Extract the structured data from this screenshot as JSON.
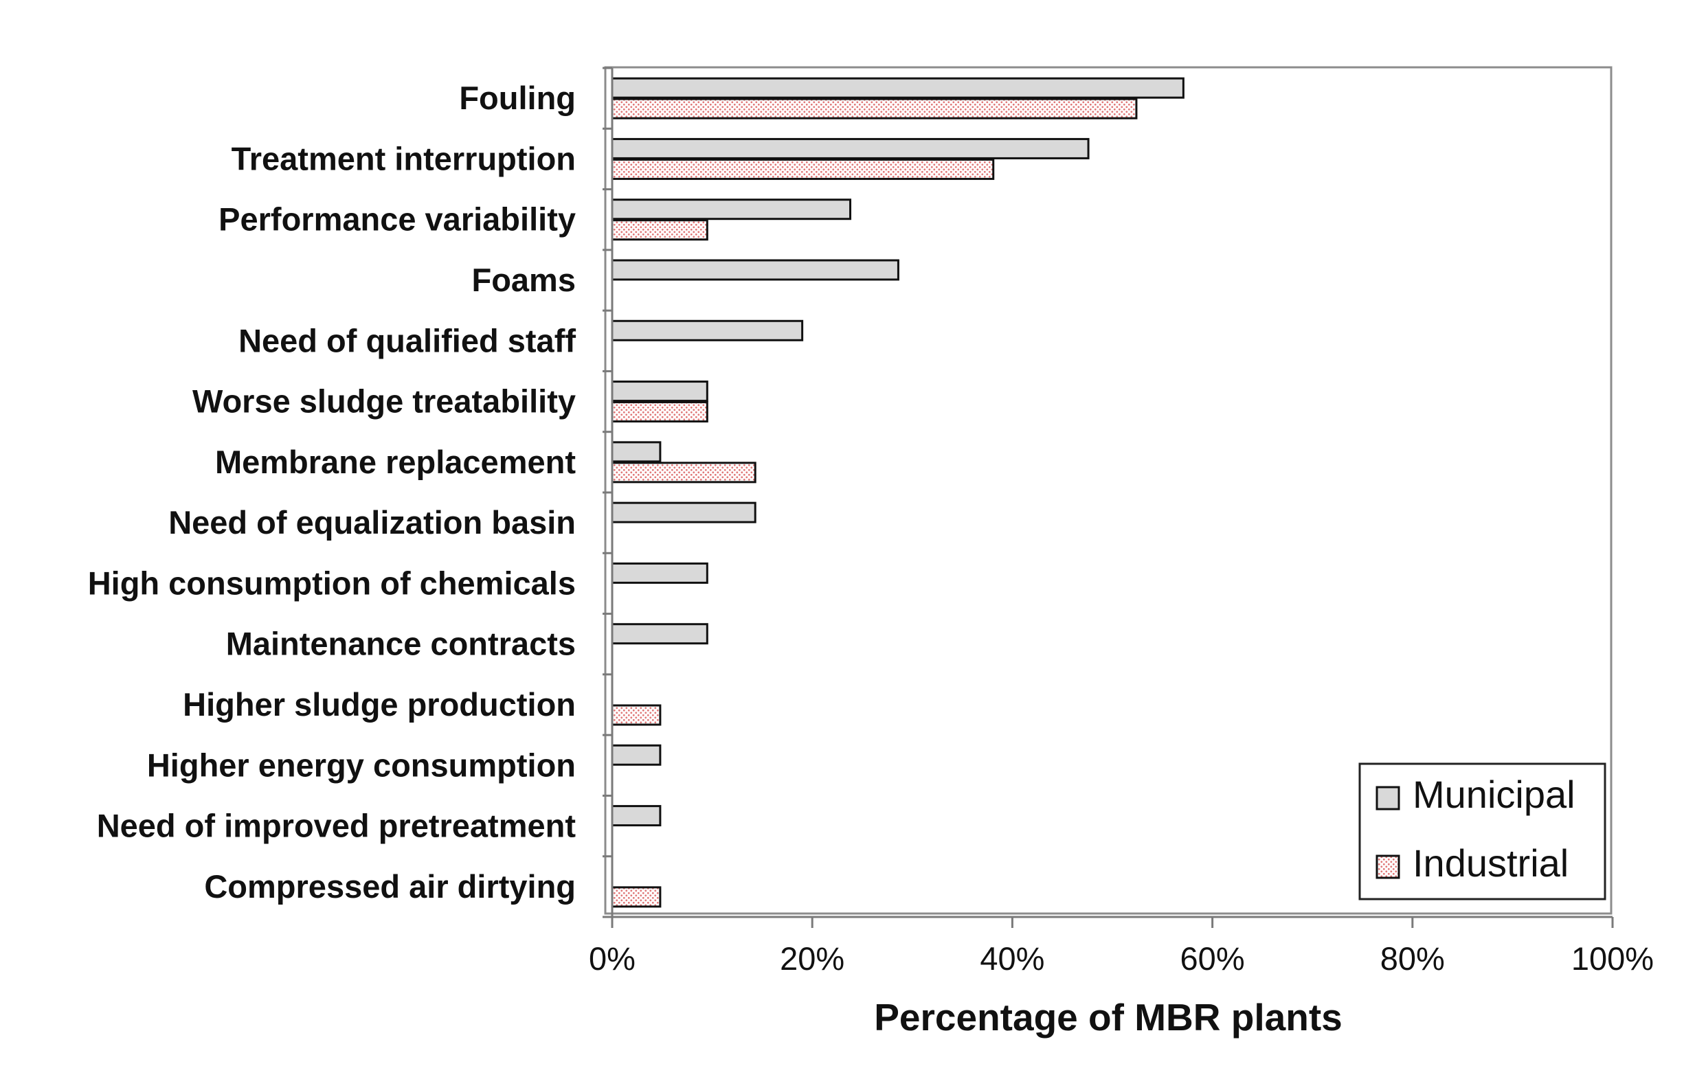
{
  "chart_data": {
    "type": "bar",
    "orientation": "horizontal",
    "categories": [
      "Fouling",
      "Treatment interruption",
      "Performance variability",
      "Foams",
      "Need of qualified staff",
      "Worse sludge treatability",
      "Membrane replacement",
      "Need of equalization basin",
      "High consumption of chemicals",
      "Maintenance contracts",
      "Higher sludge production",
      "Higher energy consumption",
      "Need of improved pretreatment",
      "Compressed air dirtying"
    ],
    "series": [
      {
        "name": "Municipal",
        "color": "#d9d9d9",
        "values": [
          57.1,
          47.6,
          23.8,
          28.6,
          19.0,
          9.5,
          4.8,
          14.3,
          9.5,
          9.5,
          0,
          4.8,
          4.8,
          0
        ]
      },
      {
        "name": "Industrial",
        "color": "#ffcccc",
        "values": [
          52.4,
          38.1,
          9.5,
          0,
          0,
          9.5,
          14.3,
          0,
          0,
          0,
          4.8,
          0,
          0,
          4.8
        ]
      }
    ],
    "x_ticks": [
      "0%",
      "20%",
      "40%",
      "60%",
      "80%",
      "100%"
    ],
    "xlim": [
      0,
      100
    ],
    "title": "",
    "xlabel": "Percentage of MBR plants",
    "ylabel": "",
    "legend_position": "bottom-right",
    "grid": false
  }
}
